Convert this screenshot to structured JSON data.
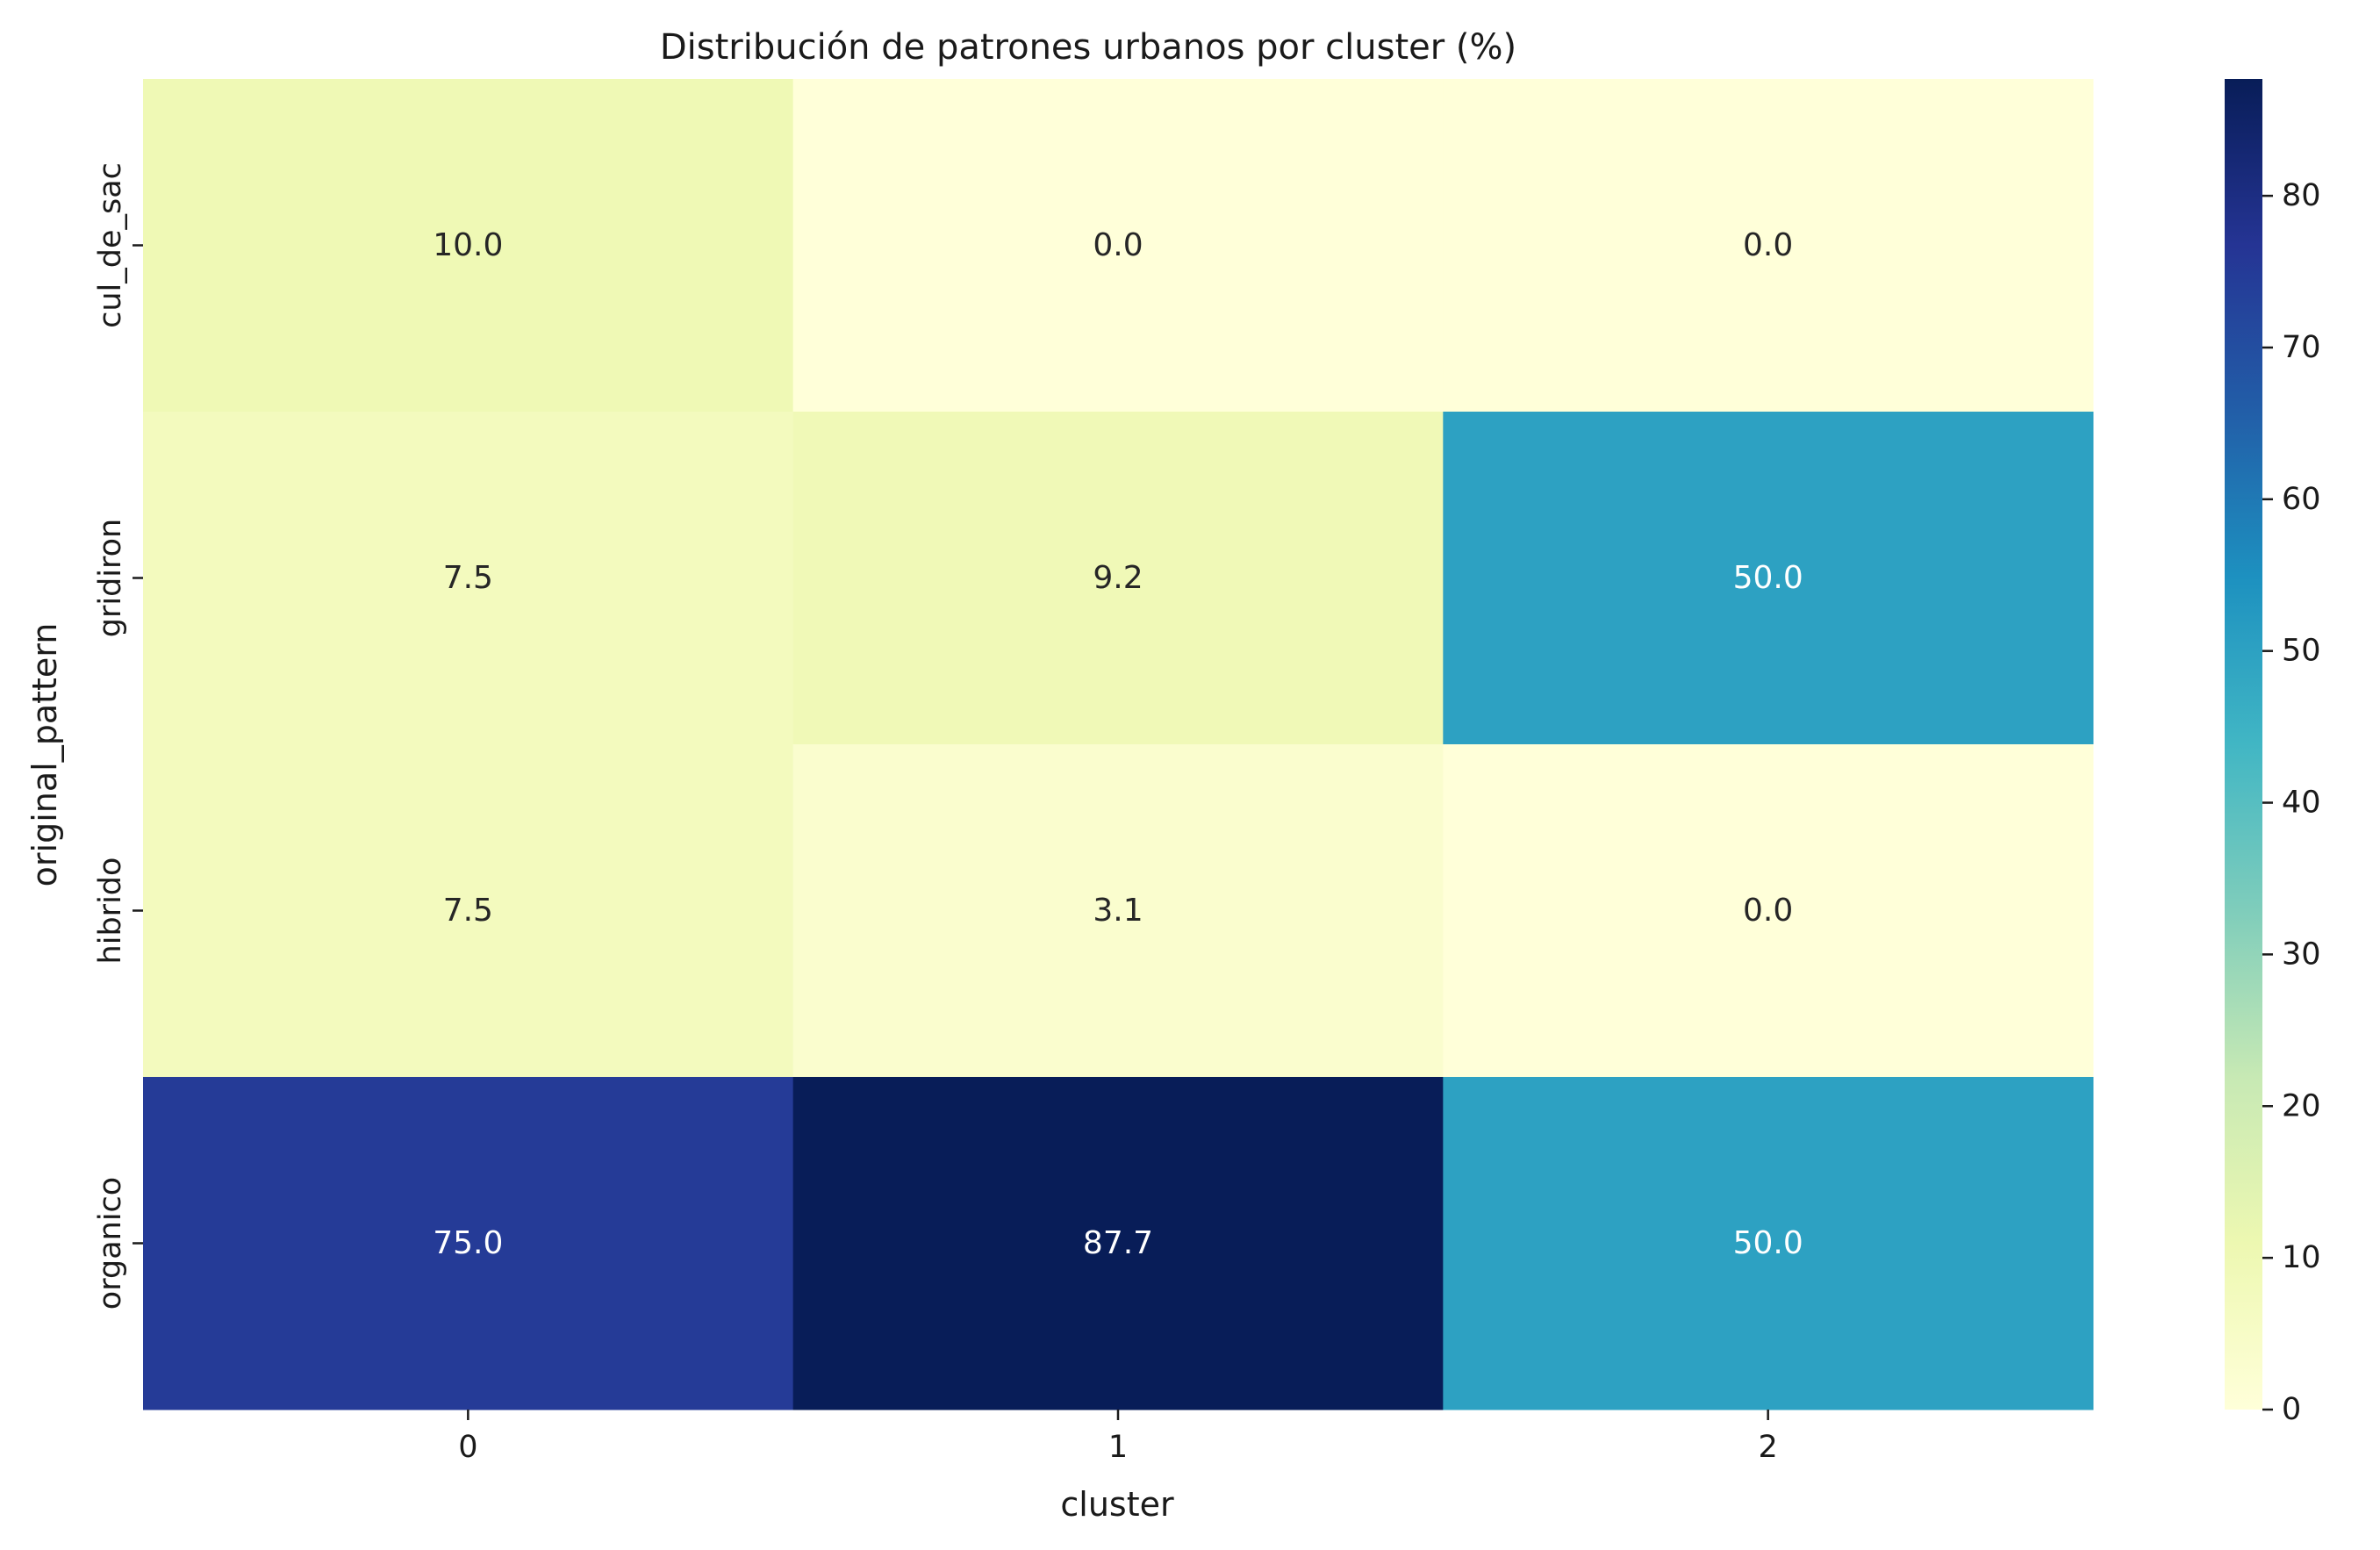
{
  "chart_data": {
    "type": "heatmap",
    "title": "Distribución de patrones urbanos por cluster (%)",
    "xlabel": "cluster",
    "ylabel": "original_pattern",
    "x_categories": [
      "0",
      "1",
      "2"
    ],
    "y_categories": [
      "cul_de_sac",
      "gridiron",
      "hibrido",
      "organico"
    ],
    "values": [
      [
        10.0,
        0.0,
        0.0
      ],
      [
        7.5,
        9.2,
        50.0
      ],
      [
        7.5,
        3.1,
        0.0
      ],
      [
        75.0,
        87.7,
        50.0
      ]
    ],
    "cell_labels": [
      [
        "10.0",
        "0.0",
        "0.0"
      ],
      [
        "7.5",
        "9.2",
        "50.0"
      ],
      [
        "7.5",
        "3.1",
        "0.0"
      ],
      [
        "75.0",
        "87.7",
        "50.0"
      ]
    ],
    "colormap": "YlGnBu",
    "vmin": 0,
    "vmax": 87.7,
    "colorbar_ticks": [
      "0",
      "10",
      "20",
      "30",
      "40",
      "50",
      "60",
      "70",
      "80"
    ],
    "colors": {
      "stops": [
        "#ffffd9",
        "#edf8b1",
        "#c7e9b4",
        "#7fcdbb",
        "#41b6c4",
        "#1d91c0",
        "#225ea8",
        "#253494",
        "#081d58"
      ],
      "dark_text": "#262626",
      "light_text": "#ffffff"
    }
  }
}
